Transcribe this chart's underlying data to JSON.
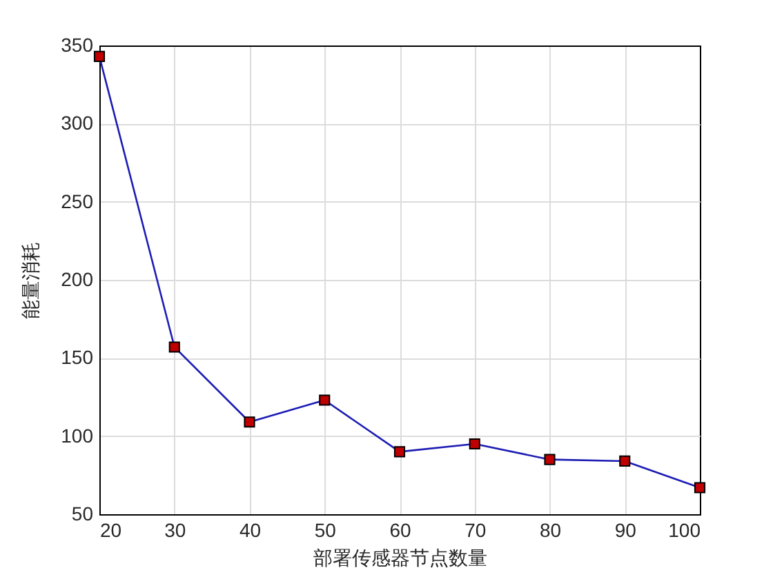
{
  "chart_data": {
    "type": "line",
    "xlabel": "部署传感器节点数量",
    "ylabel": "能量消耗",
    "x": [
      20,
      30,
      40,
      50,
      60,
      70,
      80,
      90,
      100
    ],
    "series": [
      {
        "color": "#1c1cb4",
        "values": [
          343,
          157,
          109,
          123,
          90,
          95,
          85,
          84,
          67
        ]
      }
    ],
    "colors": [
      "#c00000",
      "#c00000",
      "#c00000",
      "#c00000",
      "#c00000",
      "#c00000",
      "#c00000",
      "#c00000",
      "#c00000"
    ],
    "marker": "square",
    "line_style": "solid",
    "grid": true,
    "xlim": [
      20,
      100
    ],
    "xticks": [
      20,
      30,
      40,
      50,
      60,
      70,
      80,
      90,
      100
    ],
    "ylim": [
      50,
      350
    ],
    "yticks": [
      50,
      100,
      150,
      200,
      250,
      300,
      350
    ]
  }
}
